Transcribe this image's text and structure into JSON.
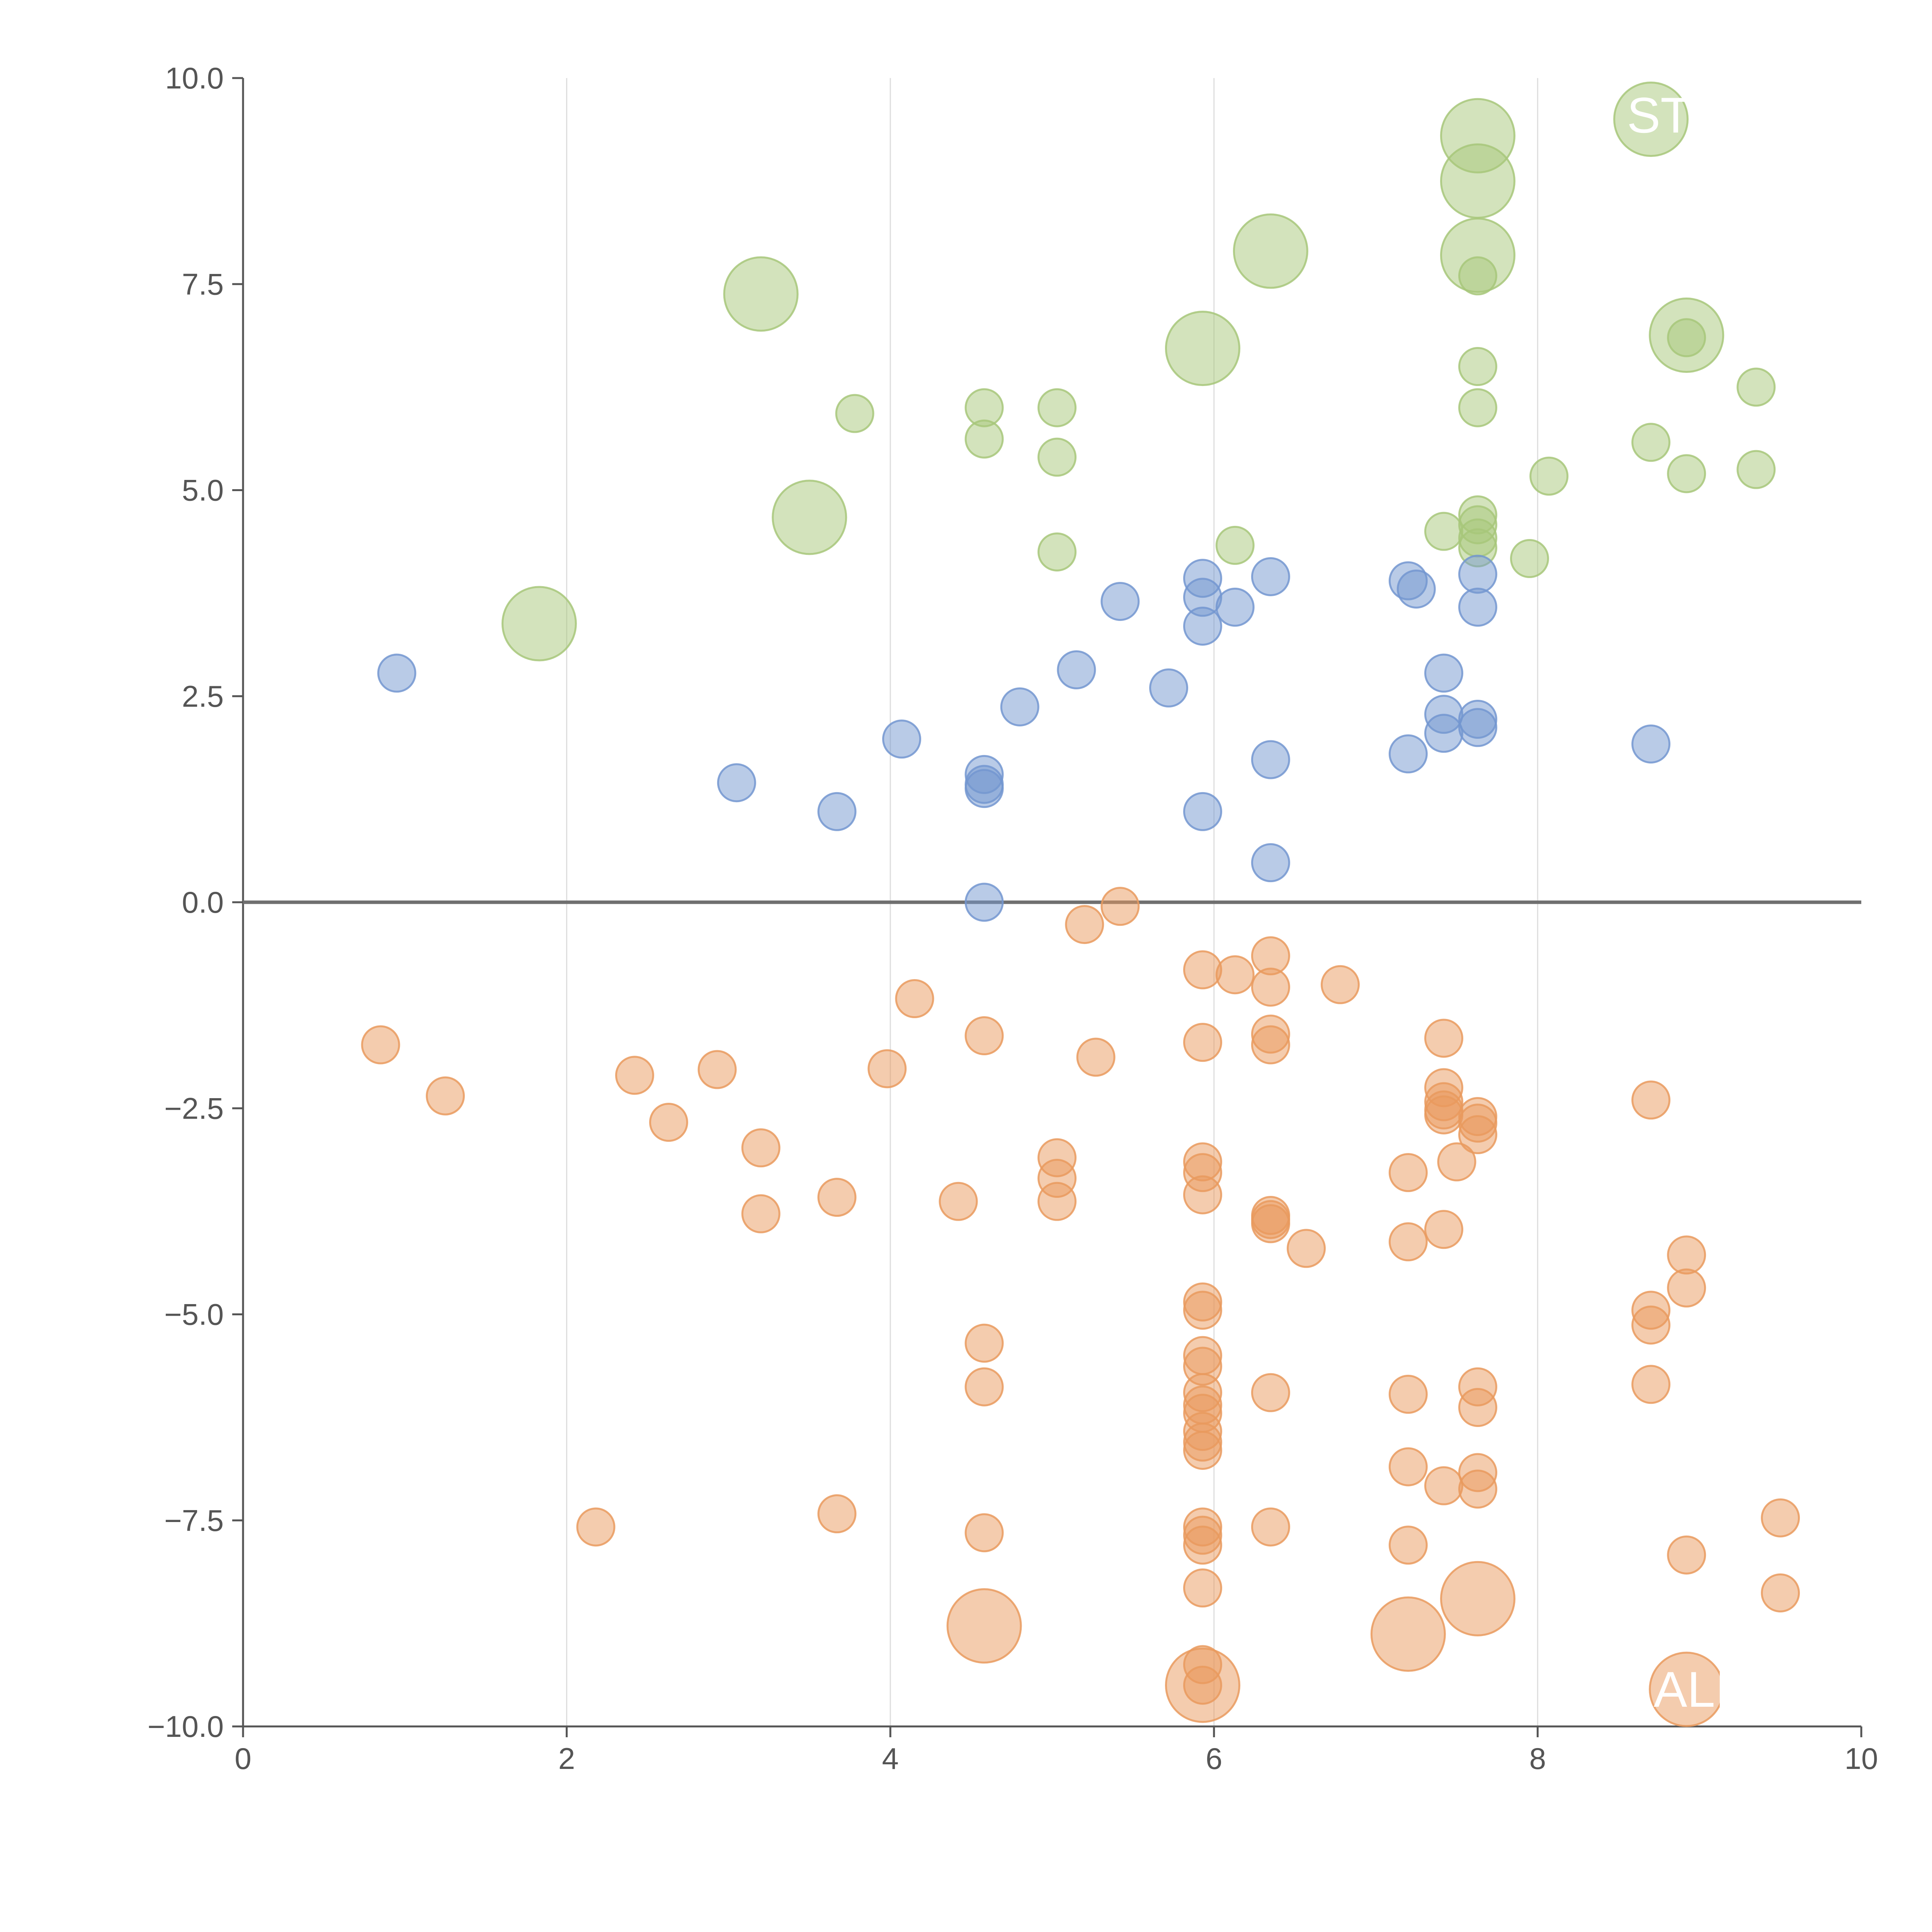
{
  "chart_data": {
    "type": "scatter",
    "title": "",
    "xlabel": "",
    "ylabel": "",
    "xlim": [
      0,
      10
    ],
    "ylim": [
      -10,
      10
    ],
    "grid": "vertical",
    "x_ticks": [
      "0",
      "2",
      "4",
      "6",
      "8",
      "10"
    ],
    "y_ticks": [
      "10.0",
      "7.5",
      "5.0",
      "2.5",
      "0.0",
      "−2.5",
      "−5.0",
      "−7.5",
      "−10.0"
    ],
    "colors": {
      "green": "#a7c77a",
      "blue": "#7397d0",
      "orange": "#e99a5e",
      "axis": "#555555",
      "grid": "#dddddd",
      "zero_line": "#6f6f6f"
    },
    "annotations": [
      {
        "text": "ST",
        "x": 8.75,
        "y": 9.55
      },
      {
        "text": "ALI",
        "x": 8.95,
        "y": -9.55
      }
    ],
    "series": [
      {
        "name": "green",
        "color": "#a7c77a",
        "points": [
          [
            1.83,
            3.38,
            3
          ],
          [
            3.2,
            7.38,
            3
          ],
          [
            3.5,
            4.67,
            3
          ],
          [
            3.78,
            5.93,
            1
          ],
          [
            4.58,
            6.0,
            1
          ],
          [
            4.58,
            5.62,
            1
          ],
          [
            5.03,
            6.0,
            1
          ],
          [
            5.03,
            5.4,
            1
          ],
          [
            5.03,
            4.25,
            1
          ],
          [
            5.93,
            6.72,
            3
          ],
          [
            6.13,
            4.33,
            1
          ],
          [
            6.35,
            7.9,
            3
          ],
          [
            7.63,
            9.3,
            3
          ],
          [
            7.63,
            8.75,
            3
          ],
          [
            7.63,
            7.85,
            3
          ],
          [
            7.63,
            7.6,
            1
          ],
          [
            7.63,
            6.5,
            1
          ],
          [
            7.63,
            6.0,
            1
          ],
          [
            7.42,
            4.5,
            1
          ],
          [
            7.63,
            4.7,
            1
          ],
          [
            7.63,
            4.58,
            1
          ],
          [
            7.63,
            4.42,
            1
          ],
          [
            7.63,
            4.3,
            1
          ],
          [
            7.95,
            4.17,
            1
          ],
          [
            8.07,
            5.17,
            1
          ],
          [
            8.7,
            9.5,
            3
          ],
          [
            8.7,
            5.58,
            1
          ],
          [
            8.92,
            6.88,
            3
          ],
          [
            8.92,
            6.85,
            1
          ],
          [
            8.92,
            5.2,
            1
          ],
          [
            9.35,
            6.25,
            1
          ],
          [
            9.35,
            5.25,
            1
          ]
        ]
      },
      {
        "name": "blue",
        "color": "#7397d0",
        "points": [
          [
            0.95,
            2.78,
            1
          ],
          [
            3.05,
            1.45,
            1
          ],
          [
            3.67,
            1.1,
            1
          ],
          [
            4.07,
            1.98,
            1
          ],
          [
            4.58,
            1.55,
            1
          ],
          [
            4.58,
            1.43,
            1
          ],
          [
            4.58,
            1.38,
            1
          ],
          [
            4.58,
            0.0,
            1
          ],
          [
            4.8,
            2.37,
            1
          ],
          [
            5.15,
            2.82,
            1
          ],
          [
            5.42,
            3.65,
            1
          ],
          [
            5.72,
            2.6,
            1
          ],
          [
            5.93,
            3.93,
            1
          ],
          [
            5.93,
            3.7,
            1
          ],
          [
            5.93,
            3.35,
            1
          ],
          [
            5.93,
            1.1,
            1
          ],
          [
            6.13,
            3.58,
            1
          ],
          [
            6.35,
            3.95,
            1
          ],
          [
            6.35,
            1.73,
            1
          ],
          [
            6.35,
            0.48,
            1
          ],
          [
            7.2,
            3.9,
            1
          ],
          [
            7.25,
            3.8,
            1
          ],
          [
            7.2,
            1.8,
            1
          ],
          [
            7.42,
            2.78,
            1
          ],
          [
            7.42,
            2.28,
            1
          ],
          [
            7.42,
            2.05,
            1
          ],
          [
            7.63,
            3.98,
            1
          ],
          [
            7.63,
            3.58,
            1
          ],
          [
            7.63,
            2.22,
            1
          ],
          [
            7.63,
            2.12,
            1
          ],
          [
            8.7,
            1.92,
            1
          ]
        ]
      },
      {
        "name": "orange",
        "color": "#e99a5e",
        "points": [
          [
            0.85,
            -1.73,
            1
          ],
          [
            1.25,
            -2.35,
            1
          ],
          [
            2.18,
            -7.58,
            1
          ],
          [
            2.42,
            -2.1,
            1
          ],
          [
            2.63,
            -2.67,
            1
          ],
          [
            2.93,
            -2.03,
            1
          ],
          [
            3.2,
            -2.98,
            1
          ],
          [
            3.2,
            -3.78,
            1
          ],
          [
            3.67,
            -3.58,
            1
          ],
          [
            3.67,
            -7.42,
            1
          ],
          [
            3.98,
            -2.02,
            1
          ],
          [
            4.15,
            -1.17,
            1
          ],
          [
            4.42,
            -3.63,
            1
          ],
          [
            4.58,
            -1.62,
            1
          ],
          [
            4.58,
            -5.35,
            1
          ],
          [
            4.58,
            -5.88,
            1
          ],
          [
            4.58,
            -7.65,
            1
          ],
          [
            4.58,
            -8.78,
            3
          ],
          [
            5.03,
            -3.1,
            1
          ],
          [
            5.03,
            -3.35,
            1
          ],
          [
            5.03,
            -3.63,
            1
          ],
          [
            5.2,
            -0.27,
            1
          ],
          [
            5.27,
            -1.88,
            1
          ],
          [
            5.42,
            -0.05,
            1
          ],
          [
            5.93,
            -0.82,
            1
          ],
          [
            5.93,
            -1.7,
            1
          ],
          [
            5.93,
            -3.15,
            1
          ],
          [
            5.93,
            -3.28,
            1
          ],
          [
            5.93,
            -3.55,
            1
          ],
          [
            5.93,
            -4.85,
            1
          ],
          [
            5.93,
            -4.95,
            1
          ],
          [
            5.93,
            -5.5,
            1
          ],
          [
            5.93,
            -5.63,
            1
          ],
          [
            5.93,
            -5.95,
            1
          ],
          [
            5.93,
            -6.1,
            1
          ],
          [
            5.93,
            -6.2,
            1
          ],
          [
            5.93,
            -6.42,
            1
          ],
          [
            5.93,
            -6.55,
            1
          ],
          [
            5.93,
            -6.65,
            1
          ],
          [
            5.93,
            -7.58,
            1
          ],
          [
            5.93,
            -7.68,
            1
          ],
          [
            5.93,
            -7.8,
            1
          ],
          [
            5.93,
            -8.32,
            1
          ],
          [
            5.93,
            -9.25,
            1
          ],
          [
            5.93,
            -9.5,
            1
          ],
          [
            5.93,
            -9.5,
            3
          ],
          [
            6.13,
            -0.88,
            1
          ],
          [
            6.35,
            -0.65,
            1
          ],
          [
            6.35,
            -1.03,
            1
          ],
          [
            6.35,
            -1.6,
            1
          ],
          [
            6.35,
            -1.73,
            1
          ],
          [
            6.35,
            -3.8,
            1
          ],
          [
            6.35,
            -3.85,
            1
          ],
          [
            6.35,
            -3.9,
            1
          ],
          [
            6.35,
            -5.95,
            1
          ],
          [
            6.35,
            -7.58,
            1
          ],
          [
            6.57,
            -4.2,
            1
          ],
          [
            6.78,
            -1.0,
            1
          ],
          [
            7.2,
            -3.28,
            1
          ],
          [
            7.2,
            -4.12,
            1
          ],
          [
            7.2,
            -5.97,
            1
          ],
          [
            7.2,
            -6.85,
            1
          ],
          [
            7.2,
            -7.8,
            1
          ],
          [
            7.2,
            -8.88,
            3
          ],
          [
            7.42,
            -1.65,
            1
          ],
          [
            7.42,
            -2.25,
            1
          ],
          [
            7.42,
            -2.42,
            1
          ],
          [
            7.42,
            -2.52,
            1
          ],
          [
            7.42,
            -2.58,
            1
          ],
          [
            7.42,
            -3.97,
            1
          ],
          [
            7.42,
            -7.08,
            1
          ],
          [
            7.5,
            -3.15,
            1
          ],
          [
            7.63,
            -2.6,
            1
          ],
          [
            7.63,
            -2.68,
            1
          ],
          [
            7.63,
            -2.82,
            1
          ],
          [
            7.63,
            -5.88,
            1
          ],
          [
            7.63,
            -6.13,
            1
          ],
          [
            7.63,
            -6.92,
            1
          ],
          [
            7.63,
            -7.12,
            1
          ],
          [
            7.63,
            -8.45,
            3
          ],
          [
            8.7,
            -2.4,
            1
          ],
          [
            8.7,
            -4.95,
            1
          ],
          [
            8.7,
            -5.13,
            1
          ],
          [
            8.7,
            -5.85,
            1
          ],
          [
            8.92,
            -4.28,
            1
          ],
          [
            8.92,
            -4.68,
            1
          ],
          [
            8.92,
            -7.92,
            1
          ],
          [
            8.92,
            -9.55,
            3
          ],
          [
            9.5,
            -7.47,
            1
          ],
          [
            9.5,
            -8.38,
            1
          ]
        ]
      }
    ]
  }
}
